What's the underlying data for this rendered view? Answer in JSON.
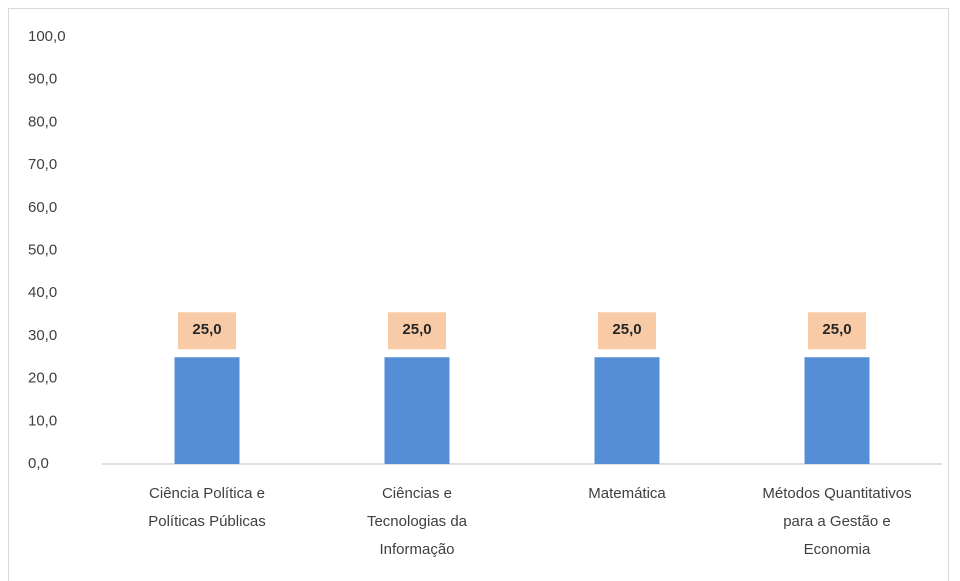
{
  "chart_data": {
    "type": "bar",
    "categories": [
      "Ciência Política e Políticas Públicas",
      "Ciências e Tecnologias da Informação",
      "Matemática",
      "Métodos Quantitativos para a Gestão e Economia"
    ],
    "values": [
      25,
      25,
      25,
      25
    ],
    "value_labels": [
      "25,0",
      "25,0",
      "25,0",
      "25,0"
    ],
    "color": "#558ed5",
    "label_box_color": "#f8cba6",
    "ylim": [
      0,
      100
    ],
    "yticks": [
      {
        "value": 0,
        "label": "0,0"
      },
      {
        "value": 10,
        "label": "10,0"
      },
      {
        "value": 20,
        "label": "20,0"
      },
      {
        "value": 30,
        "label": "30,0"
      },
      {
        "value": 40,
        "label": "40,0"
      },
      {
        "value": 50,
        "label": "50,0"
      },
      {
        "value": 60,
        "label": "60,0"
      },
      {
        "value": 70,
        "label": "70,0"
      },
      {
        "value": 80,
        "label": "80,0"
      },
      {
        "value": 90,
        "label": "90,0"
      },
      {
        "value": 100,
        "label": "100,0"
      }
    ],
    "grid": false
  }
}
